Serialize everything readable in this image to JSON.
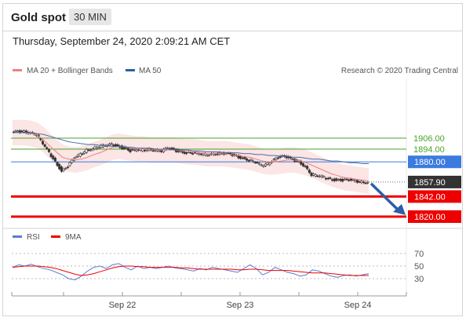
{
  "header": {
    "title": "Gold spot",
    "timeframe": "30 MIN"
  },
  "timestamp": "Thursday, September 24, 2020 2:09:21 AM CET",
  "legend": {
    "ma20": "MA 20 + Bollinger Bands",
    "ma50": "MA 50",
    "credit": "Research © 2020 Trading Central"
  },
  "rsi_legend": {
    "rsi": "RSI",
    "ma9": "9MA"
  },
  "colors": {
    "resistance": "#4aa32e",
    "pivot": "#3b7be0",
    "support": "#ee0000",
    "current": "#333333",
    "arrow": "#2b5fa6",
    "bollinger": "#fadcdc",
    "ma20": "#f08080",
    "ma50": "#4a6aa8"
  },
  "chart_data": [
    {
      "type": "line",
      "title": "Gold spot",
      "x_ticks": [
        "Sep 22",
        "Sep 23",
        "Sep 24"
      ],
      "current_price": "1857.90",
      "levels": [
        {
          "value": 1906.0,
          "label": "1906.00",
          "role": "resistance"
        },
        {
          "value": 1894.0,
          "label": "1894.00",
          "role": "resistance"
        },
        {
          "value": 1880.0,
          "label": "1880.00",
          "role": "pivot"
        },
        {
          "value": 1842.0,
          "label": "1842.00",
          "role": "support"
        },
        {
          "value": 1820.0,
          "label": "1820.00",
          "role": "support"
        }
      ],
      "price_path": [
        1912,
        1913,
        1913,
        1912,
        1910,
        1900,
        1890,
        1880,
        1870,
        1875,
        1884,
        1888,
        1893,
        1895,
        1897,
        1898,
        1899,
        1897,
        1895,
        1892,
        1893,
        1893,
        1894,
        1893,
        1892,
        1895,
        1893,
        1891,
        1890,
        1890,
        1889,
        1888,
        1889,
        1889,
        1889,
        1888,
        1886,
        1884,
        1882,
        1880,
        1876,
        1878,
        1883,
        1886,
        1885,
        1882,
        1880,
        1875,
        1866,
        1865,
        1863,
        1861,
        1860,
        1860,
        1860,
        1859,
        1858,
        1858
      ],
      "ma20": [
        1912,
        1912,
        1912,
        1911,
        1909,
        1904,
        1897,
        1891,
        1885,
        1883,
        1882,
        1883,
        1885,
        1888,
        1890,
        1893,
        1896,
        1897,
        1896,
        1895,
        1894,
        1894,
        1893,
        1893,
        1893,
        1893,
        1893,
        1892,
        1891,
        1891,
        1890,
        1889,
        1889,
        1889,
        1889,
        1888,
        1887,
        1886,
        1885,
        1883,
        1881,
        1880,
        1880,
        1881,
        1882,
        1882,
        1881,
        1879,
        1876,
        1873,
        1870,
        1867,
        1865,
        1863,
        1862,
        1861,
        1860,
        1859
      ],
      "ma50": [
        1912,
        1912,
        1912,
        1912,
        1911,
        1910,
        1908,
        1906,
        1904,
        1902,
        1901,
        1900,
        1899,
        1899,
        1898,
        1898,
        1897,
        1897,
        1896,
        1896,
        1895,
        1895,
        1895,
        1894,
        1894,
        1894,
        1893,
        1893,
        1893,
        1892,
        1892,
        1891,
        1891,
        1891,
        1890,
        1890,
        1890,
        1889,
        1889,
        1888,
        1888,
        1887,
        1887,
        1886,
        1886,
        1885,
        1885,
        1884,
        1883,
        1883,
        1882,
        1881,
        1881,
        1880,
        1879,
        1879,
        1878,
        1878
      ],
      "projection": {
        "from": 1857.9,
        "to": 1820
      }
    },
    {
      "type": "line",
      "title": "RSI",
      "y_ticks": [
        70,
        50,
        30
      ],
      "ylim": [
        20,
        80
      ],
      "series": [
        {
          "name": "RSI",
          "values": [
            48,
            52,
            50,
            53,
            49,
            46,
            44,
            40,
            36,
            30,
            28,
            34,
            42,
            48,
            50,
            46,
            52,
            54,
            48,
            44,
            50,
            46,
            48,
            46,
            48,
            50,
            47,
            46,
            44,
            42,
            46,
            44,
            48,
            46,
            44,
            42,
            40,
            46,
            52,
            46,
            36,
            40,
            48,
            44,
            40,
            38,
            34,
            36,
            44,
            42,
            38,
            34,
            32,
            35,
            36,
            34,
            36,
            38
          ]
        },
        {
          "name": "9MA",
          "values": [
            48,
            49,
            50,
            50,
            50,
            49,
            48,
            46,
            43,
            40,
            37,
            35,
            36,
            38,
            41,
            44,
            47,
            49,
            50,
            50,
            49,
            49,
            48,
            48,
            48,
            48,
            48,
            47,
            47,
            46,
            45,
            45,
            45,
            45,
            45,
            45,
            44,
            44,
            45,
            45,
            44,
            43,
            43,
            43,
            43,
            42,
            41,
            40,
            39,
            39,
            39,
            38,
            37,
            36,
            35,
            35,
            35,
            35
          ]
        }
      ]
    }
  ]
}
